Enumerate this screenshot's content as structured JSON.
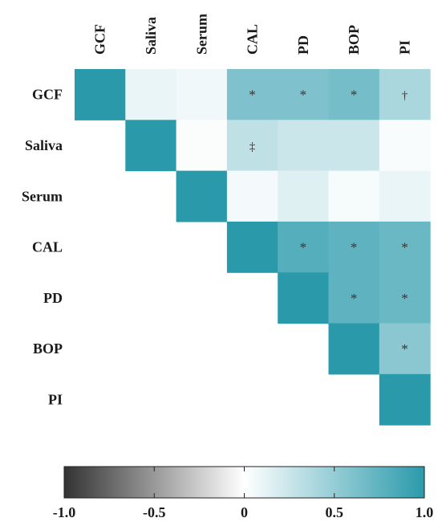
{
  "chart_data": {
    "type": "heatmap",
    "variables": [
      "GCF",
      "Saliva",
      "Serum",
      "CAL",
      "PD",
      "BOP",
      "PI"
    ],
    "matrix": [
      [
        1.0,
        0.1,
        0.07,
        0.6,
        0.6,
        0.65,
        0.4
      ],
      [
        null,
        1.0,
        0.02,
        0.3,
        0.25,
        0.25,
        0.03
      ],
      [
        null,
        null,
        1.0,
        0.05,
        0.15,
        0.04,
        0.1
      ],
      [
        null,
        null,
        null,
        1.0,
        0.8,
        0.75,
        0.7
      ],
      [
        null,
        null,
        null,
        null,
        1.0,
        0.75,
        0.7
      ],
      [
        null,
        null,
        null,
        null,
        null,
        1.0,
        0.55
      ],
      [
        null,
        null,
        null,
        null,
        null,
        null,
        1.0
      ]
    ],
    "annotations": [
      {
        "row": 0,
        "col": 3,
        "symbol": "*"
      },
      {
        "row": 0,
        "col": 4,
        "symbol": "*"
      },
      {
        "row": 0,
        "col": 5,
        "symbol": "*"
      },
      {
        "row": 0,
        "col": 6,
        "symbol": "†"
      },
      {
        "row": 1,
        "col": 3,
        "symbol": "‡"
      },
      {
        "row": 3,
        "col": 4,
        "symbol": "*"
      },
      {
        "row": 3,
        "col": 5,
        "symbol": "*"
      },
      {
        "row": 3,
        "col": 6,
        "symbol": "*"
      },
      {
        "row": 4,
        "col": 5,
        "symbol": "*"
      },
      {
        "row": 4,
        "col": 6,
        "symbol": "*"
      },
      {
        "row": 5,
        "col": 6,
        "symbol": "*"
      }
    ],
    "colorbar": {
      "range": [
        -1.0,
        1.0
      ],
      "ticks": [
        -1.0,
        -0.5,
        0,
        0.5,
        1.0
      ],
      "tick_labels": [
        "-1.0",
        "-0.5",
        "0",
        "0.5",
        "1.0"
      ]
    },
    "colors": {
      "negative": "#333333",
      "zero": "#ffffff",
      "positive": "#2a9aab"
    },
    "title": "",
    "xlabel": "",
    "ylabel": ""
  }
}
